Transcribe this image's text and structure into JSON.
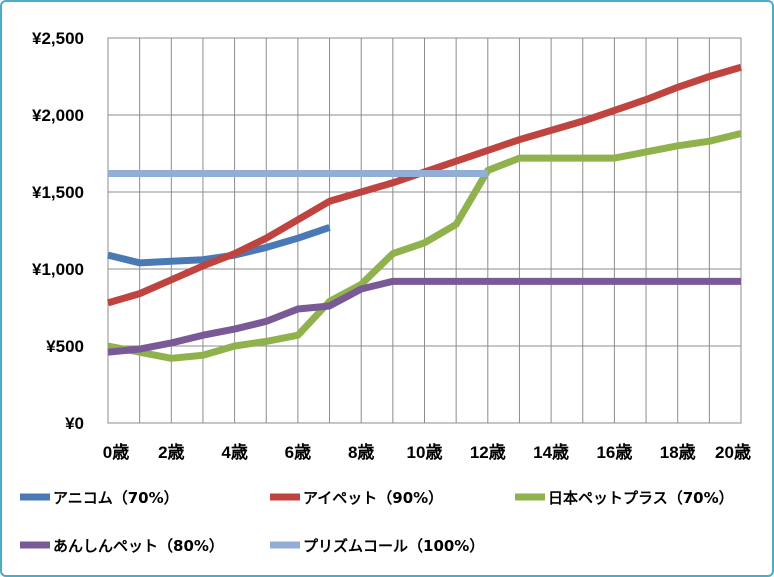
{
  "chart_data": {
    "type": "line",
    "title": "",
    "xlabel": "",
    "ylabel": "",
    "ylim": [
      0,
      2500
    ],
    "xlim": [
      0,
      20
    ],
    "grid": true,
    "legend_position": "bottom",
    "x_tick_labels": [
      "0歳",
      "2歳",
      "4歳",
      "6歳",
      "8歳",
      "10歳",
      "12歳",
      "14歳",
      "16歳",
      "18歳",
      "20歳"
    ],
    "y_tick_labels": [
      "¥0",
      "¥500",
      "¥1,000",
      "¥1,500",
      "¥2,000",
      "¥2,500"
    ],
    "series": [
      {
        "name": "アニコム（70%）",
        "color": "#4a7ab5",
        "x": [
          0,
          1,
          2,
          3,
          4,
          5,
          6,
          7
        ],
        "y": [
          1090,
          1040,
          1050,
          1060,
          1090,
          1140,
          1200,
          1270
        ]
      },
      {
        "name": "アイペット（90%）",
        "color": "#bf4440",
        "x": [
          0,
          1,
          2,
          3,
          4,
          5,
          6,
          7,
          8,
          9,
          10,
          11,
          12,
          13,
          14,
          15,
          16,
          17,
          18,
          19,
          20
        ],
        "y": [
          780,
          840,
          930,
          1020,
          1100,
          1200,
          1320,
          1440,
          1500,
          1560,
          1630,
          1700,
          1770,
          1840,
          1900,
          1960,
          2030,
          2100,
          2180,
          2250,
          2310
        ]
      },
      {
        "name": "日本ペットプラス（70%）",
        "color": "#8fb24c",
        "x": [
          0,
          1,
          2,
          3,
          4,
          5,
          6,
          7,
          8,
          9,
          10,
          11,
          12,
          13,
          14,
          15,
          16,
          17,
          18,
          19,
          20
        ],
        "y": [
          500,
          460,
          420,
          440,
          500,
          530,
          570,
          790,
          900,
          1100,
          1170,
          1290,
          1640,
          1720,
          1720,
          1720,
          1720,
          1760,
          1800,
          1830,
          1880
        ]
      },
      {
        "name": "あんしんペット（80%）",
        "color": "#7a5a96",
        "x": [
          0,
          1,
          2,
          3,
          4,
          5,
          6,
          7,
          8,
          9,
          10,
          11,
          12,
          13,
          14,
          15,
          16,
          17,
          18,
          19,
          20
        ],
        "y": [
          460,
          480,
          520,
          570,
          610,
          660,
          740,
          760,
          870,
          920,
          920,
          920,
          920,
          920,
          920,
          920,
          920,
          920,
          920,
          920,
          920
        ]
      },
      {
        "name": "プリズムコール（100%）",
        "color": "#93aed6",
        "x": [
          0,
          12
        ],
        "y": [
          1620,
          1620
        ]
      }
    ]
  }
}
